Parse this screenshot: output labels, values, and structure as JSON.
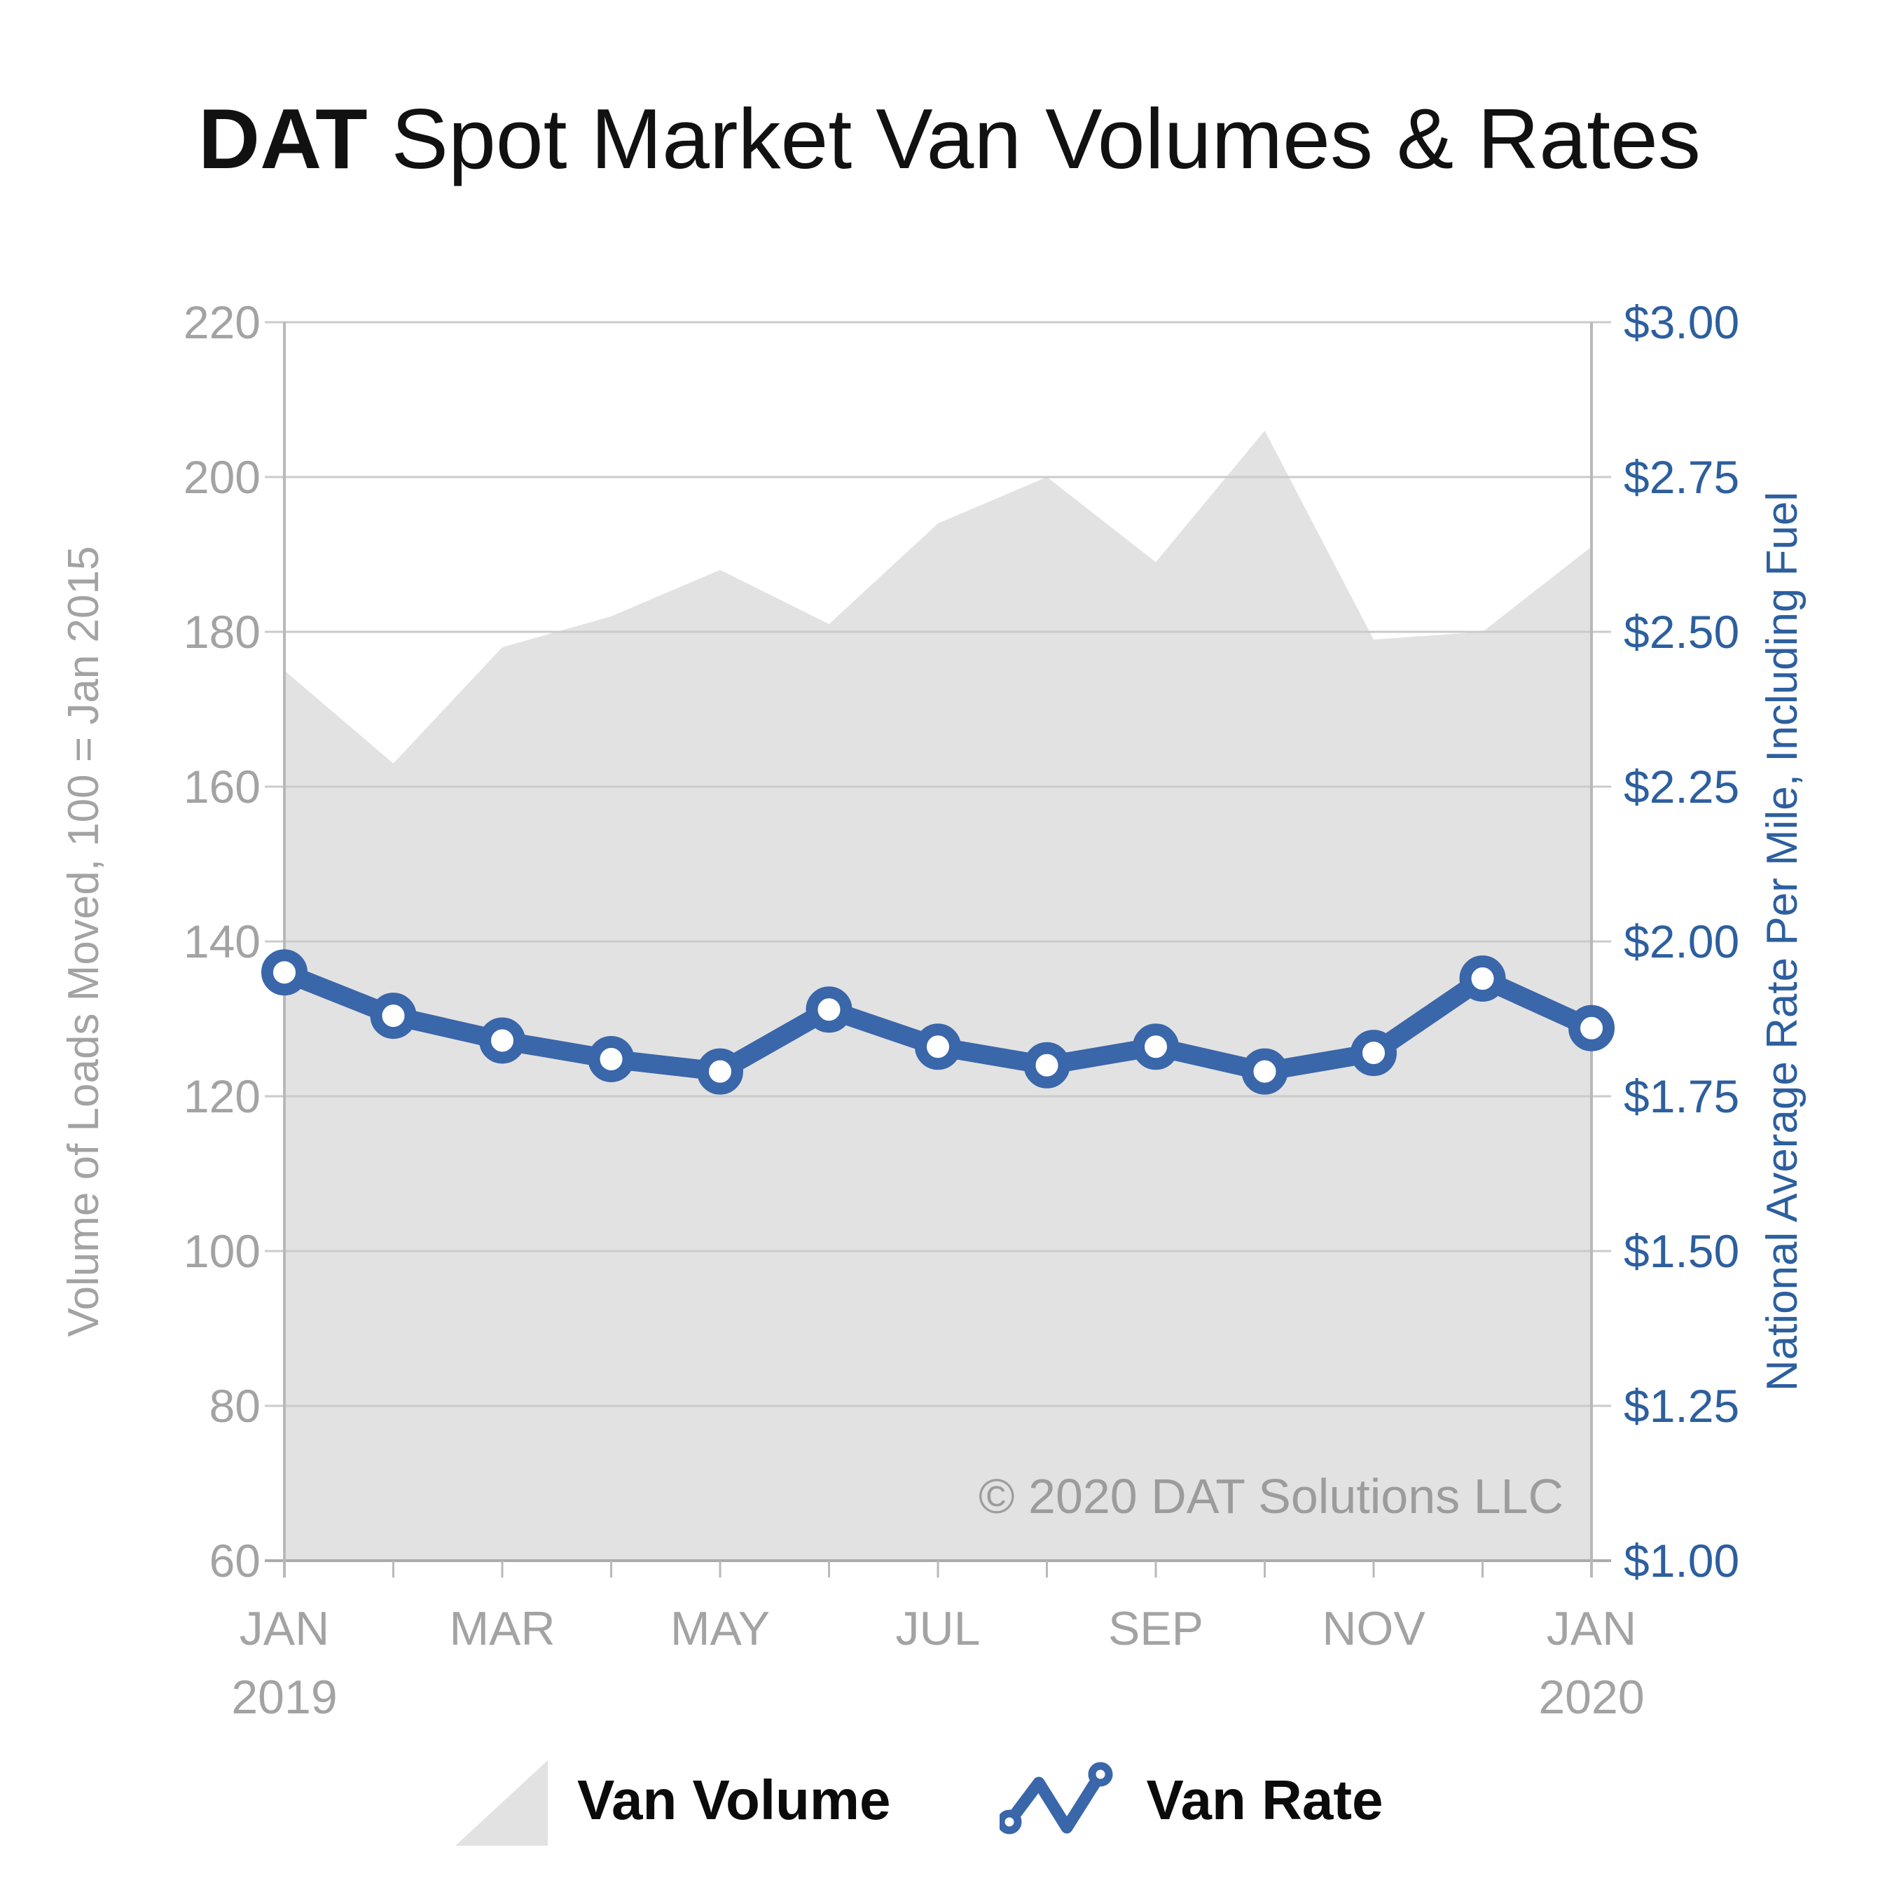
{
  "title": {
    "brand": "DAT",
    "text": " Spot Market Van Volumes & Rates"
  },
  "watermark": "© 2020 DAT Solutions LLC",
  "legend": {
    "volume_label": "Van Volume",
    "rate_label": "Van Rate"
  },
  "chart_data": {
    "type": "area+line combo",
    "categories": [
      "Jan 2019",
      "Feb 2019",
      "Mar 2019",
      "Apr 2019",
      "May 2019",
      "Jun 2019",
      "Jul 2019",
      "Aug 2019",
      "Sep 2019",
      "Oct 2019",
      "Nov 2019",
      "Dec 2019",
      "Jan 2020"
    ],
    "x_ticks": [
      {
        "index": 0,
        "label": "JAN",
        "year": "2019"
      },
      {
        "index": 2,
        "label": "MAR"
      },
      {
        "index": 4,
        "label": "MAY"
      },
      {
        "index": 6,
        "label": "JUL"
      },
      {
        "index": 8,
        "label": "SEP"
      },
      {
        "index": 10,
        "label": "NOV"
      },
      {
        "index": 12,
        "label": "JAN",
        "year": "2020"
      }
    ],
    "series": [
      {
        "name": "Van Volume",
        "type": "area",
        "axis": "left",
        "values": [
          175,
          163,
          178,
          182,
          188,
          181,
          194,
          200,
          189,
          206,
          179,
          180,
          191
        ]
      },
      {
        "name": "Van Rate",
        "type": "line",
        "axis": "right",
        "values": [
          1.95,
          1.88,
          1.84,
          1.81,
          1.79,
          1.89,
          1.83,
          1.8,
          1.83,
          1.79,
          1.82,
          1.94,
          1.86
        ]
      }
    ],
    "left_axis": {
      "title": "Volume of Loads Moved, 100 = Jan 2015",
      "min": 60,
      "max": 220,
      "step": 20
    },
    "right_axis": {
      "title": "National Average Rate Per Mile, Including Fuel",
      "min": 1.0,
      "max": 3.0,
      "step": 0.25,
      "prefix": "$"
    },
    "grid": true,
    "legend_position": "bottom",
    "colors": {
      "area": "#e2e2e2",
      "line": "#3a66aa",
      "left_axis_text": "#a3a3a3",
      "right_axis_text": "#2d5f9e",
      "gridline": "#cbcbcb",
      "axis_line": "#ababab",
      "tick_line": "#b9b9b9"
    }
  }
}
